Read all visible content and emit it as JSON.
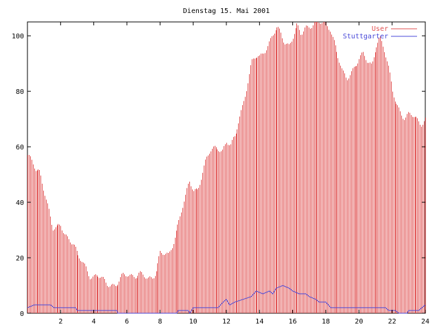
{
  "chart_data": {
    "type": "bar",
    "title": "Dienstag 15. Mai 2001",
    "xlabel": "",
    "ylabel": "",
    "xlim": [
      0,
      24
    ],
    "ylim": [
      0,
      105
    ],
    "x_ticks": [
      2,
      4,
      6,
      8,
      10,
      12,
      14,
      16,
      18,
      20,
      22,
      24
    ],
    "y_ticks": [
      0,
      20,
      40,
      60,
      80,
      100
    ],
    "legend_position": "top-right",
    "grid": false,
    "series": [
      {
        "name": "User",
        "style": "impulses",
        "color": "#e05050",
        "points": [
          [
            0.0,
            57
          ],
          [
            0.25,
            54
          ],
          [
            0.5,
            51
          ],
          [
            0.75,
            51
          ],
          [
            1.0,
            45
          ],
          [
            1.25,
            38
          ],
          [
            1.5,
            30
          ],
          [
            1.75,
            30
          ],
          [
            2.0,
            32
          ],
          [
            2.25,
            29
          ],
          [
            2.5,
            27
          ],
          [
            2.75,
            25
          ],
          [
            3.0,
            20
          ],
          [
            3.25,
            19
          ],
          [
            3.5,
            17
          ],
          [
            3.75,
            14
          ],
          [
            4.0,
            13
          ],
          [
            4.25,
            13
          ],
          [
            4.5,
            12
          ],
          [
            4.75,
            11
          ],
          [
            5.0,
            11
          ],
          [
            5.25,
            10
          ],
          [
            5.5,
            11
          ],
          [
            5.75,
            13
          ],
          [
            6.0,
            14
          ],
          [
            6.25,
            14
          ],
          [
            6.5,
            14
          ],
          [
            6.75,
            14
          ],
          [
            7.0,
            13
          ],
          [
            7.25,
            12
          ],
          [
            7.5,
            13
          ],
          [
            7.75,
            16
          ],
          [
            8.0,
            22
          ],
          [
            8.25,
            21
          ],
          [
            8.5,
            20
          ],
          [
            8.75,
            25
          ],
          [
            9.0,
            31
          ],
          [
            9.25,
            37
          ],
          [
            9.5,
            41
          ],
          [
            9.75,
            47
          ],
          [
            10.0,
            44
          ],
          [
            10.25,
            45
          ],
          [
            10.5,
            50
          ],
          [
            10.75,
            55
          ],
          [
            11.0,
            58
          ],
          [
            11.25,
            59
          ],
          [
            11.5,
            60
          ],
          [
            11.75,
            59
          ],
          [
            12.0,
            62
          ],
          [
            12.25,
            60
          ],
          [
            12.5,
            63
          ],
          [
            12.75,
            70
          ],
          [
            13.0,
            76
          ],
          [
            13.25,
            83
          ],
          [
            13.5,
            90
          ],
          [
            13.75,
            92
          ],
          [
            14.0,
            92
          ],
          [
            14.25,
            95
          ],
          [
            14.5,
            97
          ],
          [
            14.75,
            100
          ],
          [
            15.0,
            102
          ],
          [
            15.25,
            101
          ],
          [
            15.5,
            98
          ],
          [
            15.75,
            97
          ],
          [
            16.0,
            100
          ],
          [
            16.25,
            103
          ],
          [
            16.5,
            100
          ],
          [
            16.75,
            103
          ],
          [
            17.0,
            104
          ],
          [
            17.25,
            105
          ],
          [
            17.5,
            105
          ],
          [
            17.75,
            104
          ],
          [
            18.0,
            104
          ],
          [
            18.25,
            103
          ],
          [
            18.5,
            98
          ],
          [
            18.75,
            92
          ],
          [
            19.0,
            86
          ],
          [
            19.25,
            84
          ],
          [
            19.5,
            87
          ],
          [
            19.75,
            90
          ],
          [
            20.0,
            92
          ],
          [
            20.25,
            93
          ],
          [
            20.5,
            90
          ],
          [
            20.75,
            89
          ],
          [
            21.0,
            97
          ],
          [
            21.25,
            100
          ],
          [
            21.5,
            95
          ],
          [
            21.75,
            88
          ],
          [
            22.0,
            80
          ],
          [
            22.25,
            76
          ],
          [
            22.5,
            73
          ],
          [
            22.75,
            70
          ],
          [
            23.0,
            71
          ],
          [
            23.25,
            71
          ],
          [
            23.5,
            70
          ],
          [
            23.75,
            69
          ],
          [
            24.0,
            70
          ]
        ]
      },
      {
        "name": "Stuttgarter",
        "style": "line",
        "color": "#4848d8",
        "points": [
          [
            0.0,
            2
          ],
          [
            0.4,
            3
          ],
          [
            1.4,
            3
          ],
          [
            1.6,
            2
          ],
          [
            2.9,
            2
          ],
          [
            3.0,
            1
          ],
          [
            5.4,
            1
          ],
          [
            5.45,
            0
          ],
          [
            9.0,
            0
          ],
          [
            9.1,
            1
          ],
          [
            9.7,
            1
          ],
          [
            9.8,
            0
          ],
          [
            10.0,
            2
          ],
          [
            11.5,
            2
          ],
          [
            11.8,
            4
          ],
          [
            12.0,
            5
          ],
          [
            12.2,
            3
          ],
          [
            12.5,
            4
          ],
          [
            13.0,
            5
          ],
          [
            13.5,
            6
          ],
          [
            13.8,
            8
          ],
          [
            14.2,
            7
          ],
          [
            14.6,
            8
          ],
          [
            14.8,
            7
          ],
          [
            15.0,
            9
          ],
          [
            15.4,
            10
          ],
          [
            15.8,
            9
          ],
          [
            16.0,
            8
          ],
          [
            16.4,
            7
          ],
          [
            16.8,
            7
          ],
          [
            17.0,
            6
          ],
          [
            17.4,
            5
          ],
          [
            17.6,
            4
          ],
          [
            18.0,
            4
          ],
          [
            18.3,
            2
          ],
          [
            21.6,
            2
          ],
          [
            21.8,
            1
          ],
          [
            22.2,
            1
          ],
          [
            22.4,
            0
          ],
          [
            22.9,
            0
          ],
          [
            23.0,
            1
          ],
          [
            23.6,
            1
          ],
          [
            23.8,
            2
          ],
          [
            24.0,
            3
          ]
        ]
      }
    ]
  }
}
